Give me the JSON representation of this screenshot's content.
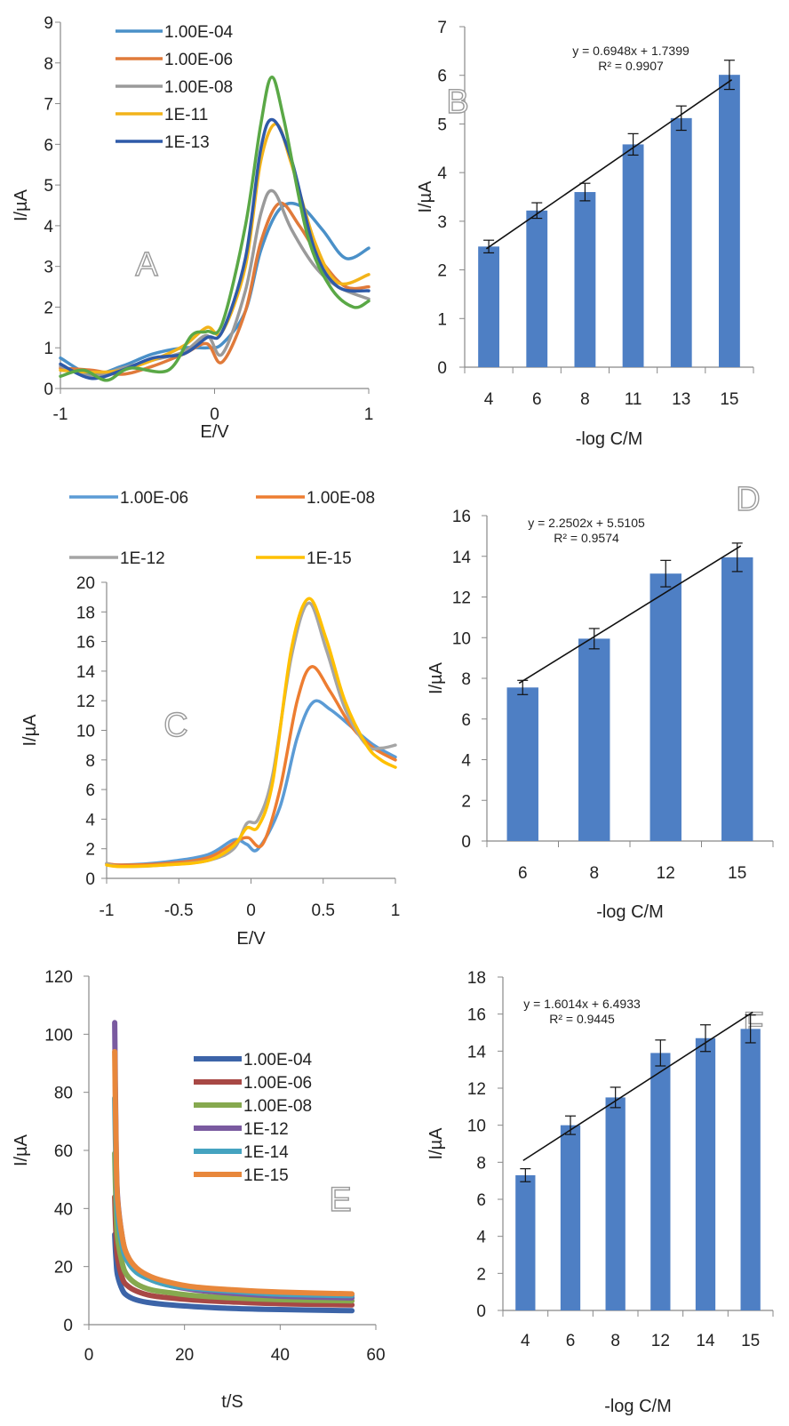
{
  "chart_data": [
    {
      "type": "line",
      "panel_label": "A",
      "xlabel": "E/V",
      "ylabel": "I/µA",
      "xlim": [
        -1,
        1
      ],
      "ylim": [
        0,
        9
      ],
      "xticks": [
        "-1",
        "0",
        "1"
      ],
      "yticks": [
        "0",
        "1",
        "2",
        "3",
        "4",
        "5",
        "6",
        "7",
        "8",
        "9"
      ],
      "grid": false,
      "legend_position": "top-left",
      "series": [
        {
          "name": "1.00E-04",
          "color": "#4a90c8",
          "x": [
            -1,
            -0.8,
            -0.6,
            -0.4,
            -0.2,
            -0.05,
            0.05,
            0.2,
            0.3,
            0.42,
            0.55,
            0.7,
            0.85,
            1.0
          ],
          "y": [
            0.75,
            0.35,
            0.55,
            0.85,
            1.0,
            1.0,
            1.1,
            1.9,
            3.4,
            4.4,
            4.5,
            3.9,
            3.2,
            3.45
          ]
        },
        {
          "name": "1.00E-06",
          "color": "#e07a3a",
          "x": [
            -1,
            -0.8,
            -0.6,
            -0.4,
            -0.2,
            -0.05,
            0.05,
            0.2,
            0.3,
            0.42,
            0.55,
            0.7,
            0.85,
            1.0
          ],
          "y": [
            0.5,
            0.45,
            0.35,
            0.55,
            0.85,
            1.1,
            0.65,
            1.9,
            3.6,
            4.55,
            4.0,
            3.1,
            2.5,
            2.5
          ]
        },
        {
          "name": "1.00E-08",
          "color": "#9a9a9a",
          "x": [
            -1,
            -0.8,
            -0.6,
            -0.4,
            -0.2,
            -0.05,
            0.05,
            0.2,
            0.3,
            0.38,
            0.5,
            0.65,
            0.8,
            1.0
          ],
          "y": [
            0.55,
            0.3,
            0.5,
            0.7,
            0.9,
            1.3,
            0.85,
            2.4,
            4.3,
            4.85,
            3.9,
            3.0,
            2.5,
            2.2
          ]
        },
        {
          "name": "1E-11",
          "color": "#f2b31a",
          "x": [
            -1,
            -0.8,
            -0.6,
            -0.4,
            -0.2,
            -0.05,
            0.05,
            0.2,
            0.3,
            0.4,
            0.5,
            0.65,
            0.8,
            1.0
          ],
          "y": [
            0.45,
            0.4,
            0.45,
            0.7,
            1.05,
            1.5,
            1.4,
            3.0,
            5.6,
            6.5,
            5.5,
            3.6,
            2.6,
            2.8
          ]
        },
        {
          "name": "1E-13",
          "color": "#2f5aa8",
          "x": [
            -1,
            -0.8,
            -0.6,
            -0.4,
            -0.2,
            -0.05,
            0.05,
            0.2,
            0.3,
            0.38,
            0.5,
            0.65,
            0.8,
            1.0
          ],
          "y": [
            0.6,
            0.25,
            0.45,
            0.75,
            0.85,
            1.25,
            1.4,
            3.2,
            5.9,
            6.6,
            5.6,
            3.4,
            2.5,
            2.4
          ]
        },
        {
          "name": "",
          "color": "#5aa846",
          "x": [
            -1,
            -0.85,
            -0.7,
            -0.55,
            -0.3,
            -0.15,
            -0.05,
            0.05,
            0.2,
            0.3,
            0.37,
            0.45,
            0.6,
            0.75,
            0.9,
            1.0
          ],
          "y": [
            0.3,
            0.45,
            0.2,
            0.5,
            0.45,
            1.3,
            1.4,
            1.6,
            4.0,
            6.5,
            7.65,
            6.6,
            3.8,
            2.5,
            2.0,
            2.15
          ]
        }
      ]
    },
    {
      "type": "bar",
      "panel_label": "B",
      "xlabel": "-log C/M",
      "ylabel": "I/µA",
      "categories": [
        "4",
        "6",
        "8",
        "11",
        "13",
        "15"
      ],
      "values": [
        2.48,
        3.22,
        3.6,
        4.58,
        5.12,
        6.01
      ],
      "errors": [
        0.13,
        0.16,
        0.18,
        0.22,
        0.25,
        0.3
      ],
      "ylim": [
        0,
        7
      ],
      "yticks": [
        "0",
        "1",
        "2",
        "3",
        "4",
        "5",
        "6",
        "7"
      ],
      "color": "#4e7fc4",
      "trendline": {
        "slope": 0.6948,
        "intercept": 1.7399,
        "equation": "y = 0.6948x + 1.7399",
        "r2": "R² = 0.9907"
      },
      "grid": false
    },
    {
      "type": "line",
      "panel_label": "C",
      "xlabel": "E/V",
      "ylabel": "I/µA",
      "xlim": [
        -1,
        1
      ],
      "ylim": [
        0,
        20
      ],
      "xticks": [
        "-1",
        "-0.5",
        "0",
        "0.5",
        "1"
      ],
      "yticks": [
        "0",
        "2",
        "4",
        "6",
        "8",
        "10",
        "12",
        "14",
        "16",
        "18",
        "20"
      ],
      "grid": false,
      "legend_position": "top",
      "series": [
        {
          "name": "1.00E-06",
          "color": "#5b9bd5",
          "x": [
            -1,
            -0.9,
            -0.6,
            -0.3,
            -0.12,
            -0.03,
            0.05,
            0.2,
            0.32,
            0.43,
            0.55,
            0.7,
            0.85,
            1.0
          ],
          "y": [
            1.0,
            0.9,
            1.1,
            1.6,
            2.6,
            2.3,
            2.0,
            4.8,
            9.5,
            11.9,
            11.4,
            10.2,
            9.0,
            8.2
          ]
        },
        {
          "name": "1.00E-08",
          "color": "#ed7d31",
          "x": [
            -1,
            -0.9,
            -0.6,
            -0.3,
            -0.1,
            -0.02,
            0.08,
            0.2,
            0.32,
            0.42,
            0.55,
            0.7,
            0.85,
            1.0
          ],
          "y": [
            1.0,
            0.9,
            1.0,
            1.4,
            2.5,
            2.75,
            2.3,
            6.0,
            12.0,
            14.3,
            12.6,
            10.2,
            8.8,
            8.0
          ]
        },
        {
          "name": "1E-12",
          "color": "#a5a5a5",
          "x": [
            -1,
            -0.9,
            -0.6,
            -0.3,
            -0.12,
            -0.03,
            0.05,
            0.15,
            0.28,
            0.4,
            0.52,
            0.65,
            0.8,
            0.9,
            1.0
          ],
          "y": [
            1.0,
            0.8,
            0.9,
            1.2,
            2.0,
            3.7,
            4.0,
            7.0,
            15.0,
            18.6,
            15.5,
            11.5,
            9.0,
            8.8,
            9.0
          ]
        },
        {
          "name": "1E-15",
          "color": "#ffc000",
          "x": [
            -1,
            -0.9,
            -0.6,
            -0.3,
            -0.12,
            -0.03,
            0.05,
            0.15,
            0.28,
            0.4,
            0.52,
            0.65,
            0.8,
            0.9,
            1.0
          ],
          "y": [
            0.9,
            0.8,
            0.9,
            1.2,
            2.2,
            3.4,
            3.5,
            6.5,
            15.5,
            18.9,
            16.2,
            12.0,
            9.0,
            8.0,
            7.5
          ]
        }
      ]
    },
    {
      "type": "bar",
      "panel_label": "D",
      "xlabel": "-log C/M",
      "ylabel": "I/µA",
      "categories": [
        "6",
        "8",
        "12",
        "15"
      ],
      "values": [
        7.55,
        9.95,
        13.15,
        13.95
      ],
      "errors": [
        0.35,
        0.5,
        0.65,
        0.7
      ],
      "ylim": [
        0,
        16
      ],
      "yticks": [
        "0",
        "2",
        "4",
        "6",
        "8",
        "10",
        "12",
        "14",
        "16"
      ],
      "color": "#4e7fc4",
      "trendline": {
        "slope": 2.2502,
        "intercept": 5.5105,
        "equation": "y = 2.2502x + 5.5105",
        "r2": "R² = 0.9574"
      },
      "grid": false
    },
    {
      "type": "line",
      "panel_label": "E",
      "xlabel": "t/S",
      "ylabel": "I/µA",
      "xlim": [
        0,
        60
      ],
      "ylim": [
        0,
        120
      ],
      "xticks": [
        "0",
        "20",
        "40",
        "60"
      ],
      "yticks": [
        "0",
        "20",
        "40",
        "60",
        "80",
        "100",
        "120"
      ],
      "grid": false,
      "legend_position": "top-right",
      "series": [
        {
          "name": "1.00E-04",
          "color": "#3c64a8",
          "x": [
            5.4,
            5.7,
            6,
            7,
            8,
            10,
            13,
            17,
            22,
            30,
            40,
            55
          ],
          "y": [
            31,
            22,
            17,
            12,
            10,
            8.5,
            7.5,
            6.8,
            6.2,
            5.6,
            5.2,
            4.8
          ]
        },
        {
          "name": "1.00E-06",
          "color": "#a84845",
          "x": [
            5.4,
            5.7,
            6,
            7,
            8,
            10,
            13,
            17,
            22,
            30,
            40,
            55
          ],
          "y": [
            44,
            30,
            23,
            16,
            13.5,
            11.5,
            10,
            9.2,
            8.5,
            7.8,
            7.2,
            6.8
          ]
        },
        {
          "name": "1.00E-08",
          "color": "#86a94f",
          "x": [
            5.4,
            5.7,
            6,
            7,
            8,
            10,
            13,
            17,
            22,
            30,
            40,
            55
          ],
          "y": [
            59,
            40,
            30,
            21,
            17,
            14,
            12,
            11,
            10,
            9.2,
            8.6,
            8.2
          ]
        },
        {
          "name": "1E-12",
          "color": "#7a5aa0",
          "x": [
            5.4,
            5.7,
            6,
            7,
            8,
            10,
            13,
            17,
            22,
            30,
            40,
            55
          ],
          "y": [
            104,
            62,
            44,
            30,
            24,
            19,
            15.5,
            13.5,
            12,
            10.8,
            9.8,
            9.2
          ]
        },
        {
          "name": "1E-14",
          "color": "#45a3c0",
          "x": [
            5.4,
            5.7,
            6,
            7,
            8,
            10,
            13,
            17,
            22,
            30,
            40,
            55
          ],
          "y": [
            78,
            52,
            38,
            27,
            22,
            18,
            15.5,
            13.5,
            12.5,
            11.5,
            10.5,
            10
          ]
        },
        {
          "name": "1E-15",
          "color": "#e8873b",
          "x": [
            5.4,
            5.7,
            6,
            7,
            8,
            10,
            13,
            17,
            22,
            30,
            40,
            55
          ],
          "y": [
            94,
            60,
            43,
            30,
            24,
            19.5,
            16.5,
            14.5,
            13,
            12,
            11.2,
            10.6
          ]
        }
      ]
    },
    {
      "type": "bar",
      "panel_label": "F",
      "xlabel": "-log C/M",
      "ylabel": "I/µA",
      "categories": [
        "4",
        "6",
        "8",
        "12",
        "14",
        "15"
      ],
      "values": [
        7.3,
        10.0,
        11.5,
        13.9,
        14.7,
        15.2
      ],
      "errors": [
        0.35,
        0.5,
        0.55,
        0.7,
        0.72,
        0.75
      ],
      "ylim": [
        0,
        18
      ],
      "yticks": [
        "0",
        "2",
        "4",
        "6",
        "8",
        "10",
        "12",
        "14",
        "16",
        "18"
      ],
      "color": "#4e7fc4",
      "trendline": {
        "slope": 1.6014,
        "intercept": 6.4933,
        "equation": "y = 1.6014x + 6.4933",
        "r2": "R² = 0.9445"
      },
      "grid": false
    }
  ]
}
